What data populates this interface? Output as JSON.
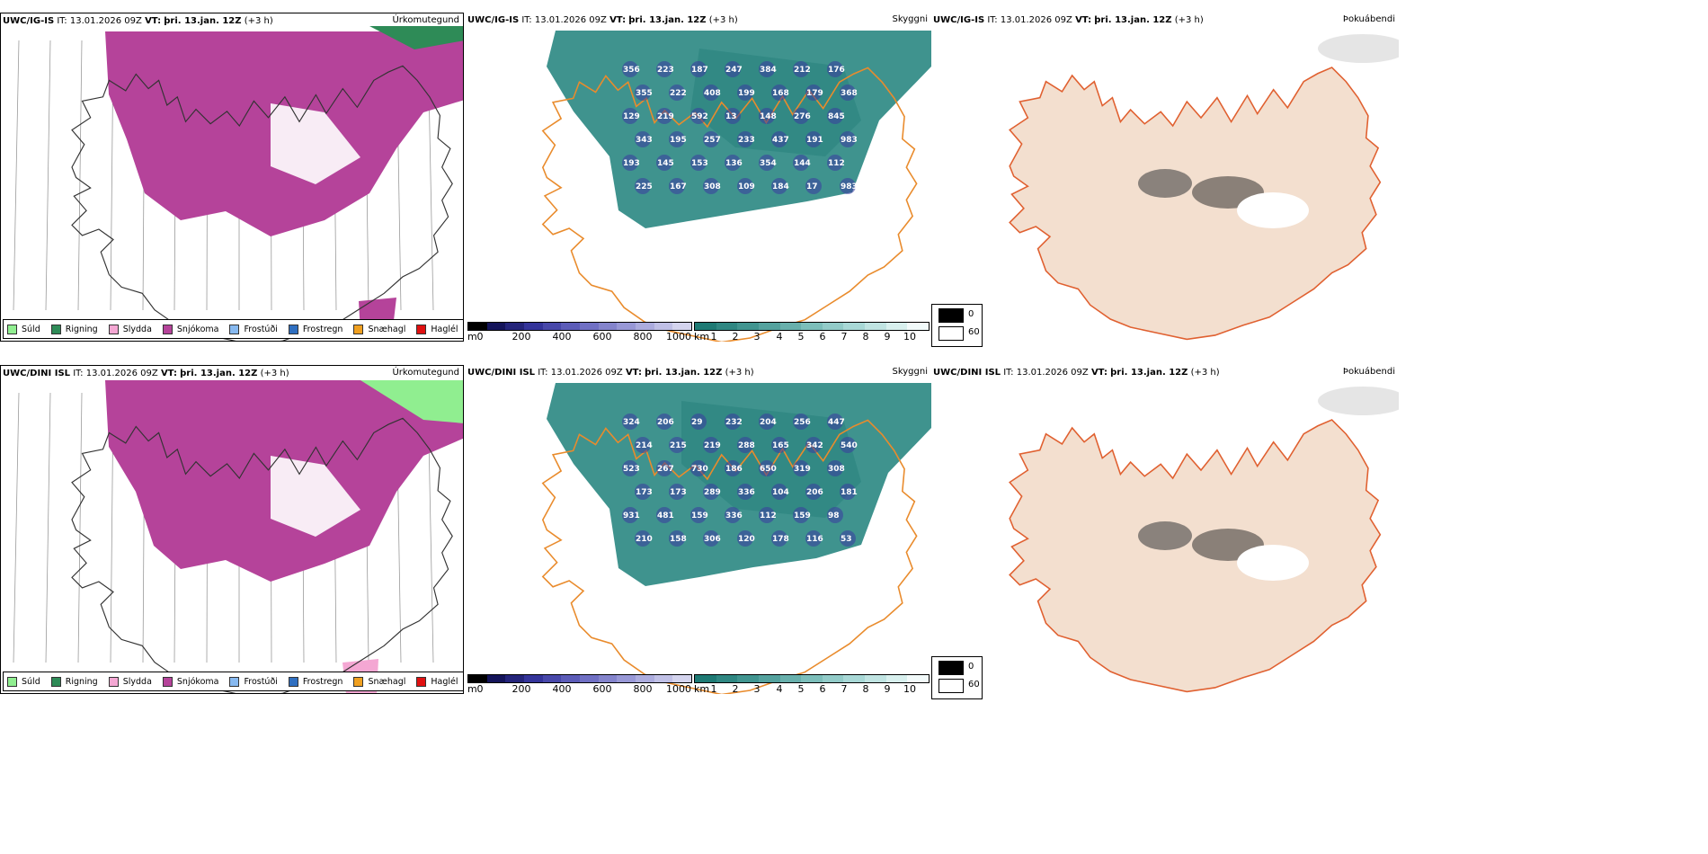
{
  "rows": [
    {
      "model": "UWC/IG-IS",
      "it_label": "IT:",
      "it_value": "13.01.2026 09Z",
      "vt_label": "VT:",
      "vt_value": "þri. 13.jan. 12Z",
      "lead": "(+3 h)",
      "cloud_labels": [
        "356",
        "223",
        "187",
        "247",
        "384",
        "212",
        "176",
        "355",
        "222",
        "408",
        "199",
        "168",
        "179",
        "368",
        "129",
        "219",
        "592",
        "13",
        "148",
        "276",
        "845",
        "343",
        "195",
        "257",
        "233",
        "437",
        "191",
        "983",
        "193",
        "145",
        "153",
        "136",
        "354",
        "144",
        "112",
        "225",
        "167",
        "308",
        "109",
        "184",
        "17",
        "983"
      ]
    },
    {
      "model": "UWC/DINI ISL",
      "it_label": "IT:",
      "it_value": "13.01.2026 09Z",
      "vt_label": "VT:",
      "vt_value": "þri. 13.jan. 12Z",
      "lead": "(+3 h)",
      "cloud_labels": [
        "324",
        "206",
        "29",
        "232",
        "204",
        "256",
        "447",
        "214",
        "215",
        "219",
        "288",
        "165",
        "342",
        "540",
        "523",
        "267",
        "730",
        "186",
        "650",
        "319",
        "308",
        "173",
        "173",
        "289",
        "336",
        "104",
        "206",
        "181",
        "931",
        "481",
        "159",
        "336",
        "112",
        "159",
        "98",
        "210",
        "158",
        "306",
        "120",
        "178",
        "116",
        "53"
      ]
    }
  ],
  "panel_titles": [
    "Úrkomutegund",
    "Skyggni",
    "Þokuábendi"
  ],
  "precip_legend": [
    {
      "label": "Súld",
      "color": "#90ee90"
    },
    {
      "label": "Rigning",
      "color": "#2e8b57"
    },
    {
      "label": "Slydda",
      "color": "#f4a7d3"
    },
    {
      "label": "Snjókoma",
      "color": "#b5439a"
    },
    {
      "label": "Frostúði",
      "color": "#87b9f0"
    },
    {
      "label": "Frostregn",
      "color": "#2f6fc0"
    },
    {
      "label": "Snæhagl",
      "color": "#f0a020"
    },
    {
      "label": "Haglél",
      "color": "#e01010"
    }
  ],
  "cloud_base_bar": {
    "unit": "m",
    "ticks": [
      "0",
      "200",
      "400",
      "600",
      "800",
      "1000"
    ],
    "colors": [
      "#000000",
      "#14145a",
      "#24247a",
      "#34349a",
      "#4848aa",
      "#5c5cb8",
      "#7070c4",
      "#8484cc",
      "#9898d6",
      "#acacde",
      "#c0c0e6",
      "#d4d4ee"
    ]
  },
  "visibility_bar": {
    "unit": "km",
    "ticks": [
      "1",
      "2",
      "3",
      "4",
      "5",
      "6",
      "7",
      "8",
      "9",
      "10"
    ],
    "colors": [
      "#1e7a74",
      "#2f8782",
      "#419590",
      "#54a29e",
      "#68b0ac",
      "#7cbeba",
      "#92cbc8",
      "#a8d8d6",
      "#c0e4e2",
      "#d8f0ee",
      "#f2fafa"
    ]
  },
  "fog_legend": {
    "items": [
      {
        "label": "0",
        "color": "#000000"
      },
      {
        "label": "60",
        "color": "#ffffff"
      }
    ]
  }
}
